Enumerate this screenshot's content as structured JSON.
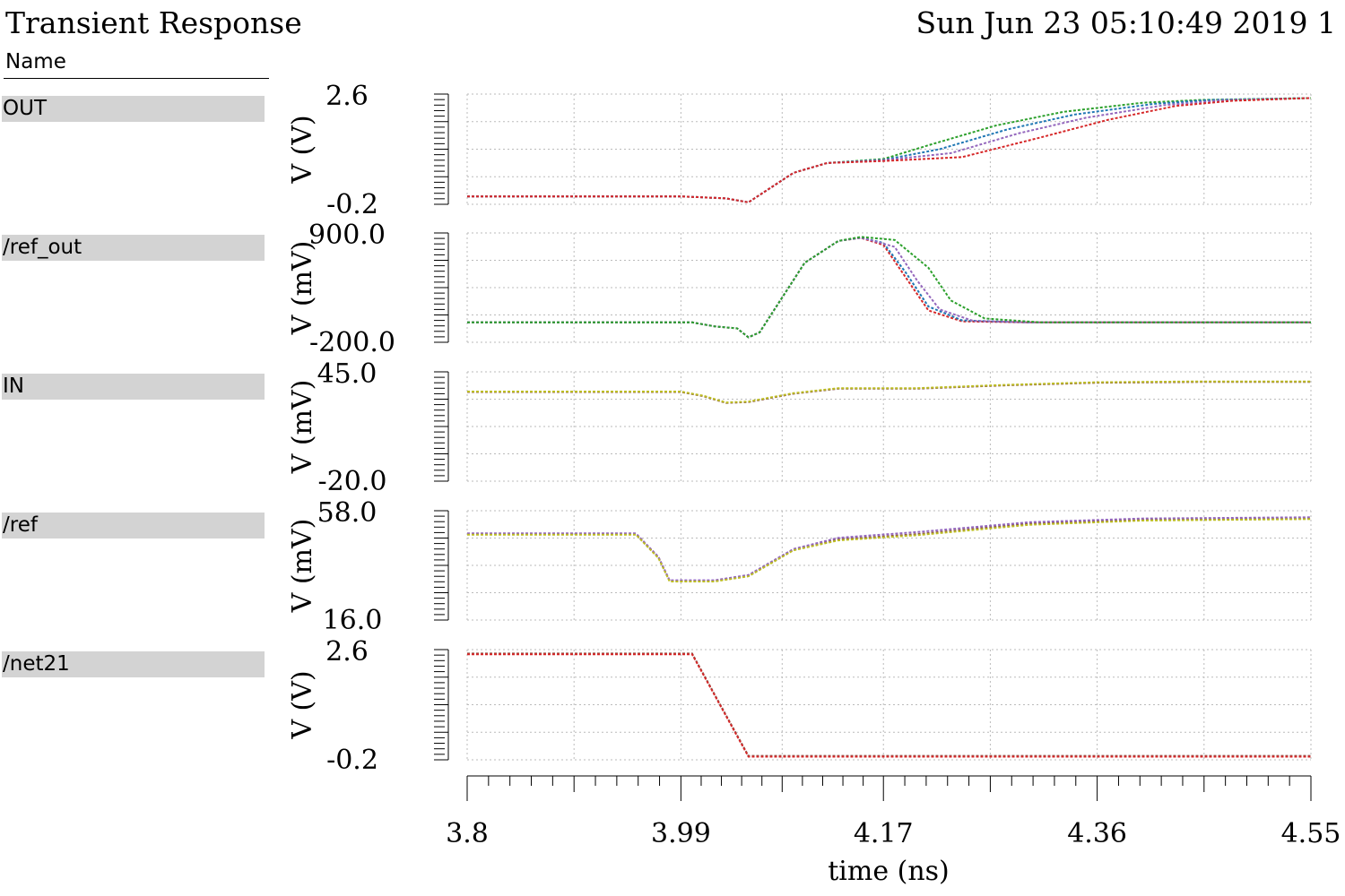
{
  "header": {
    "title": "Transient Response",
    "timestamp": "Sun Jun 23 05:10:49 2019 1",
    "name_column": "Name"
  },
  "signals": [
    "OUT",
    "/ref_out",
    "IN",
    "/ref",
    "/net21"
  ],
  "colors": {
    "grid": "#bbbbbb",
    "traces": [
      "#d62728",
      "#2ca02c",
      "#1f77b4",
      "#9467bd",
      "#8c564b",
      "#e377c2",
      "#17becf",
      "#bcbd22"
    ],
    "label_bg": "#d3d3d3"
  },
  "chart_data": {
    "type": "line",
    "xlabel": "time (ns)",
    "xlim": [
      3.8,
      4.55
    ],
    "xticks": [
      "3.8",
      "3.99",
      "4.17",
      "4.36",
      "4.55"
    ],
    "xtick_values": [
      3.8,
      3.99,
      4.17,
      4.36,
      4.55
    ],
    "panels": [
      {
        "signal": "OUT",
        "ylabel": "V (V)",
        "ymax_label": "2.6",
        "ymin_label": "-0.2",
        "ylim": [
          -0.2,
          2.6
        ],
        "series": [
          {
            "color": "#2ca02c",
            "x": [
              3.8,
              3.99,
              4.03,
              4.05,
              4.09,
              4.12,
              4.17,
              4.21,
              4.27,
              4.33,
              4.4,
              4.45,
              4.55
            ],
            "y": [
              0.0,
              0.0,
              -0.05,
              -0.15,
              0.6,
              0.85,
              0.95,
              1.3,
              1.8,
              2.15,
              2.38,
              2.45,
              2.5
            ]
          },
          {
            "color": "#1f77b4",
            "x": [
              3.8,
              3.99,
              4.03,
              4.05,
              4.09,
              4.12,
              4.17,
              4.22,
              4.28,
              4.34,
              4.41,
              4.46,
              4.55
            ],
            "y": [
              0.0,
              0.0,
              -0.05,
              -0.15,
              0.6,
              0.85,
              0.93,
              1.2,
              1.7,
              2.08,
              2.35,
              2.45,
              2.5
            ]
          },
          {
            "color": "#9467bd",
            "x": [
              3.8,
              3.99,
              4.03,
              4.05,
              4.09,
              4.12,
              4.17,
              4.23,
              4.29,
              4.35,
              4.42,
              4.47,
              4.55
            ],
            "y": [
              0.0,
              0.0,
              -0.05,
              -0.15,
              0.6,
              0.85,
              0.92,
              1.1,
              1.6,
              2.0,
              2.32,
              2.44,
              2.5
            ]
          },
          {
            "color": "#d62728",
            "x": [
              3.8,
              3.99,
              4.03,
              4.05,
              4.09,
              4.12,
              4.17,
              4.24,
              4.31,
              4.37,
              4.43,
              4.48,
              4.55
            ],
            "y": [
              0.0,
              0.0,
              -0.05,
              -0.15,
              0.6,
              0.85,
              0.9,
              1.0,
              1.5,
              1.95,
              2.3,
              2.43,
              2.5
            ]
          }
        ]
      },
      {
        "signal": "/ref_out",
        "ylabel": "V (mV)",
        "ymax_label": "900.0",
        "ymin_label": "-200.0",
        "ylim": [
          -200,
          900
        ],
        "series": [
          {
            "color": "#d62728",
            "x": [
              3.8,
              4.0,
              4.02,
              4.04,
              4.05,
              4.06,
              4.1,
              4.13,
              4.15,
              4.17,
              4.19,
              4.21,
              4.24,
              4.3,
              4.55
            ],
            "y": [
              0,
              0,
              -40,
              -60,
              -150,
              -100,
              600,
              820,
              850,
              780,
              450,
              120,
              10,
              0,
              0
            ]
          },
          {
            "color": "#1f77b4",
            "x": [
              3.8,
              4.0,
              4.02,
              4.04,
              4.05,
              4.06,
              4.1,
              4.13,
              4.15,
              4.17,
              4.19,
              4.21,
              4.24,
              4.3,
              4.55
            ],
            "y": [
              0,
              0,
              -40,
              -60,
              -150,
              -100,
              600,
              820,
              852,
              800,
              500,
              160,
              20,
              0,
              0
            ]
          },
          {
            "color": "#9467bd",
            "x": [
              3.8,
              4.0,
              4.02,
              4.04,
              4.05,
              4.06,
              4.1,
              4.13,
              4.15,
              4.18,
              4.2,
              4.22,
              4.25,
              4.3,
              4.55
            ],
            "y": [
              0,
              0,
              -40,
              -60,
              -150,
              -100,
              600,
              820,
              855,
              760,
              420,
              130,
              15,
              0,
              0
            ]
          },
          {
            "color": "#2ca02c",
            "x": [
              3.8,
              4.0,
              4.02,
              4.04,
              4.05,
              4.06,
              4.1,
              4.13,
              4.15,
              4.18,
              4.21,
              4.23,
              4.26,
              4.31,
              4.55
            ],
            "y": [
              0,
              0,
              -40,
              -60,
              -150,
              -100,
              600,
              820,
              860,
              830,
              550,
              220,
              40,
              0,
              0
            ]
          }
        ]
      },
      {
        "signal": "IN",
        "ylabel": "V (mV)",
        "ymax_label": "45.0",
        "ymin_label": "-20.0",
        "ylim": [
          -20,
          45
        ],
        "series": [
          {
            "color": "#8c564b",
            "x": [
              3.8,
              3.99,
              4.01,
              4.03,
              4.05,
              4.09,
              4.13,
              4.2,
              4.28,
              4.36,
              4.45,
              4.55
            ],
            "y": [
              33,
              33,
              30.5,
              26.5,
              27,
              32,
              35,
              35,
              37,
              38.5,
              39,
              39
            ]
          },
          {
            "color": "#bcbd22",
            "x": [
              3.8,
              3.99,
              4.01,
              4.03,
              4.05,
              4.09,
              4.13,
              4.2,
              4.28,
              4.36,
              4.45,
              4.55
            ],
            "y": [
              33.3,
              33.3,
              30.8,
              26.8,
              27.3,
              32.3,
              35.3,
              35.3,
              37.3,
              38.8,
              39.3,
              39.3
            ]
          }
        ]
      },
      {
        "signal": "/ref",
        "ylabel": "V (mV)",
        "ymax_label": "58.0",
        "ymin_label": "16.0",
        "ylim": [
          16,
          58
        ],
        "series": [
          {
            "color": "#8c564b",
            "x": [
              3.8,
              3.95,
              3.97,
              3.98,
              4.02,
              4.05,
              4.09,
              4.13,
              4.2,
              4.3,
              4.4,
              4.55
            ],
            "y": [
              49,
              49,
              40,
              31,
              31,
              33,
              43,
              47,
              49,
              53,
              54.5,
              55
            ]
          },
          {
            "color": "#9467bd",
            "x": [
              3.8,
              3.95,
              3.97,
              3.98,
              4.02,
              4.05,
              4.09,
              4.13,
              4.2,
              4.3,
              4.4,
              4.55
            ],
            "y": [
              49.3,
              49.3,
              40.3,
              31.3,
              31.3,
              33.3,
              43.3,
              47.6,
              49.8,
              53.6,
              55,
              55.5
            ]
          },
          {
            "color": "#bcbd22",
            "x": [
              3.8,
              3.95,
              3.97,
              3.98,
              4.02,
              4.05,
              4.09,
              4.13,
              4.2,
              4.3,
              4.4,
              4.55
            ],
            "y": [
              48.8,
              48.8,
              39.8,
              30.8,
              30.8,
              32.8,
              42.8,
              46.6,
              48.6,
              52.6,
              54.2,
              54.8
            ]
          }
        ]
      },
      {
        "signal": "/net21",
        "ylabel": "V (V)",
        "ymax_label": "2.6",
        "ymin_label": "-0.2",
        "ylim": [
          -0.2,
          2.6
        ],
        "series": [
          {
            "color": "#8c564b",
            "x": [
              3.8,
              4.0,
              4.05,
              4.55
            ],
            "y": [
              2.5,
              2.5,
              -0.1,
              -0.1
            ]
          },
          {
            "color": "#d62728",
            "x": [
              3.8,
              4.0,
              4.05,
              4.55
            ],
            "y": [
              2.48,
              2.48,
              -0.12,
              -0.12
            ]
          }
        ]
      }
    ]
  }
}
